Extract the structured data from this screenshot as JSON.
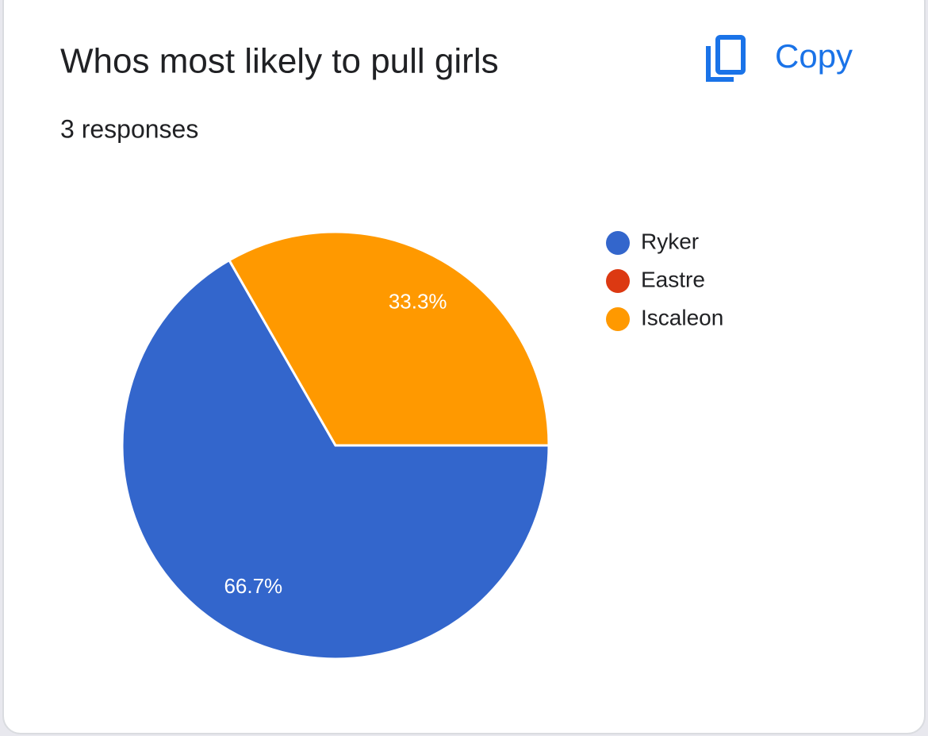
{
  "chart_data": {
    "type": "pie",
    "title": "Whos most likely to pull girls",
    "subtitle": "3 responses",
    "button": "Copy",
    "categories": [
      "Ryker",
      "Eastre",
      "Iscaleon"
    ],
    "values": [
      66.7,
      0,
      33.3
    ],
    "value_labels": [
      "66.7%",
      null,
      "33.3%"
    ],
    "colors": [
      "#3366cc",
      "#dc3912",
      "#ff9900"
    ]
  }
}
